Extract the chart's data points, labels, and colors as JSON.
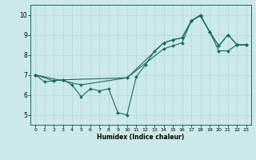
{
  "xlabel": "Humidex (Indice chaleur)",
  "ylabel": "",
  "xlim": [
    -0.5,
    23.5
  ],
  "ylim": [
    4.5,
    10.5
  ],
  "xticks": [
    0,
    1,
    2,
    3,
    4,
    5,
    6,
    7,
    8,
    9,
    10,
    11,
    12,
    13,
    14,
    15,
    16,
    17,
    18,
    19,
    20,
    21,
    22,
    23
  ],
  "yticks": [
    5,
    6,
    7,
    8,
    9,
    10
  ],
  "bg_color": "#cce9e9",
  "grid_color": "#aed4d4",
  "line_color": "#1a6b5a",
  "lines": [
    {
      "x": [
        0,
        1,
        2,
        3,
        4,
        5,
        6,
        7,
        8,
        9,
        10,
        11,
        12,
        13,
        14,
        15,
        16,
        17,
        18,
        19,
        20,
        21,
        22,
        23
      ],
      "y": [
        7.0,
        6.65,
        6.7,
        6.75,
        6.5,
        5.9,
        6.3,
        6.2,
        6.3,
        5.1,
        5.0,
        6.9,
        7.5,
        8.2,
        8.6,
        8.75,
        8.85,
        9.7,
        9.95,
        9.15,
        8.45,
        9.0,
        8.5,
        8.5
      ]
    },
    {
      "x": [
        0,
        2,
        3,
        10,
        14,
        15,
        16,
        17,
        18,
        19,
        20,
        21,
        22,
        23
      ],
      "y": [
        7.0,
        6.7,
        6.75,
        6.85,
        8.6,
        8.75,
        8.85,
        9.7,
        9.95,
        9.15,
        8.45,
        9.0,
        8.5,
        8.5
      ]
    },
    {
      "x": [
        0,
        5,
        10,
        14,
        15,
        16,
        17,
        18,
        19,
        20,
        21,
        22,
        23
      ],
      "y": [
        7.0,
        6.5,
        6.85,
        8.3,
        8.45,
        8.6,
        9.7,
        10.0,
        9.15,
        8.2,
        8.2,
        8.5,
        8.5
      ]
    }
  ],
  "figsize": [
    3.2,
    2.0
  ],
  "dpi": 100
}
